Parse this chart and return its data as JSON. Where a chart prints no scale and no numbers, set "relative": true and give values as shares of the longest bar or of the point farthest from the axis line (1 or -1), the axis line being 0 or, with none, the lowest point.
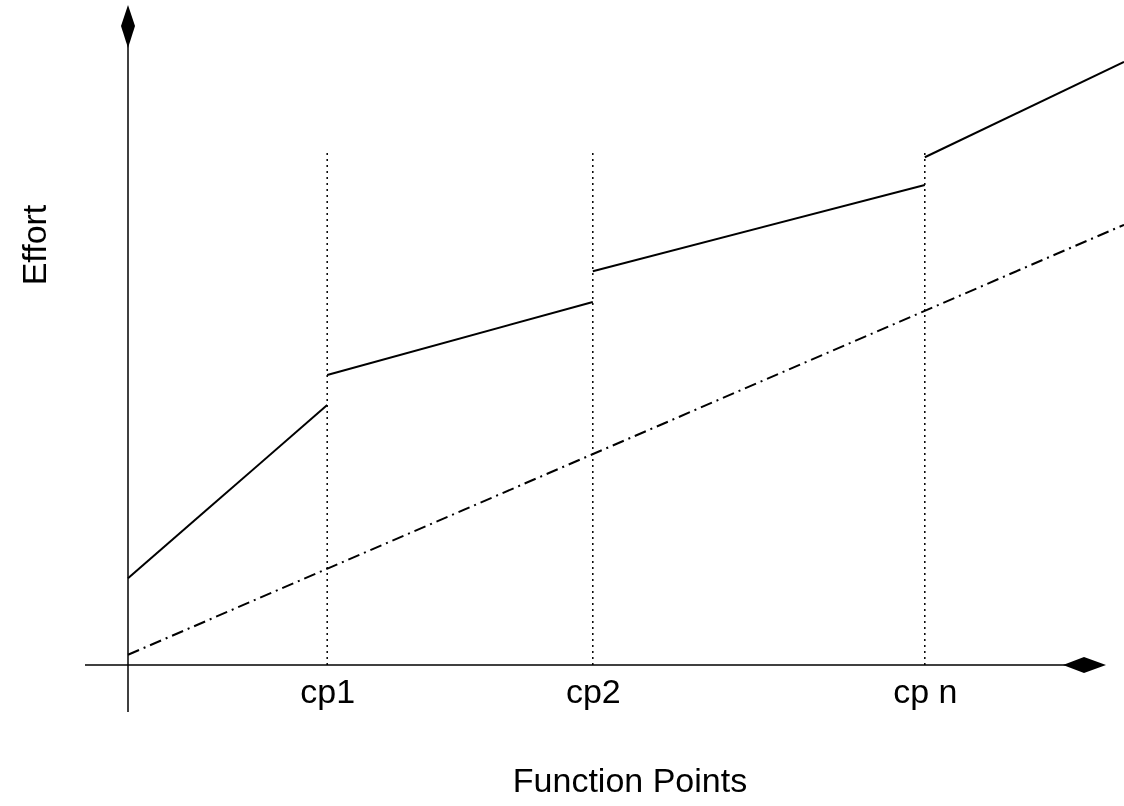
{
  "chart_data": {
    "type": "line",
    "relative": true,
    "xlabel": "Function Points",
    "ylabel": "Effort",
    "categories": [
      null,
      null,
      null,
      "cp1",
      null,
      null,
      null,
      "cp2",
      null,
      null,
      null,
      null,
      "cp n",
      null,
      null,
      null
    ],
    "grid": "x",
    "marker": "none",
    "series": [
      {
        "color": "#000000",
        "line_style": "solid",
        "values": [
          0.144,
          null,
          null,
          0.431,
          null,
          null,
          null,
          null,
          null,
          null,
          null,
          null,
          null,
          null,
          null,
          null
        ]
      },
      {
        "color": "#000000",
        "line_style": "solid",
        "values": [
          null,
          null,
          null,
          0.481,
          null,
          null,
          null,
          0.602,
          null,
          null,
          null,
          null,
          null,
          null,
          null,
          null
        ]
      },
      {
        "color": "#000000",
        "line_style": "solid",
        "values": [
          null,
          null,
          null,
          null,
          null,
          null,
          null,
          0.653,
          null,
          null,
          null,
          null,
          0.796,
          null,
          null,
          null
        ]
      },
      {
        "color": "#000000",
        "line_style": "solid",
        "values": [
          null,
          null,
          null,
          null,
          null,
          null,
          null,
          null,
          null,
          null,
          null,
          null,
          0.842,
          null,
          null,
          1
        ]
      },
      {
        "color": "#000000",
        "line_style": "dashed",
        "values": [
          0.017,
          null,
          null,
          null,
          null,
          null,
          null,
          null,
          null,
          null,
          null,
          null,
          null,
          null,
          null,
          0.73
        ]
      }
    ]
  }
}
